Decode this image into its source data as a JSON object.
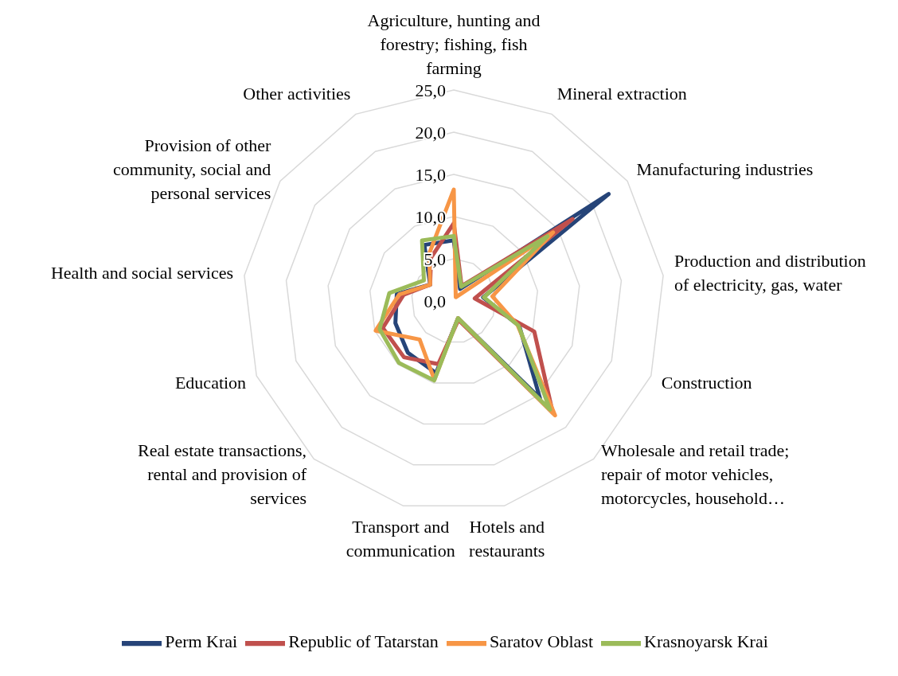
{
  "chart_data": {
    "type": "radar",
    "categories": [
      "Agriculture, hunting and forestry; fishing, fish farming",
      "Mineral extraction",
      "Manufacturing industries",
      "Production and distribution of electricity, gas, water",
      "Construction",
      "Wholesale and retail trade; repair of motor vehicles, motorcycles, household…",
      "Hotels and restaurants",
      "Transport and communication",
      "Real estate transactions, rental and provision of services",
      "Education",
      "Health and social services",
      "Provision of other community, social and personal services",
      "Other activities"
    ],
    "series": [
      {
        "name": "Perm Krai",
        "color": "#264478",
        "values": [
          7.2,
          1.6,
          22.3,
          3.5,
          8.3,
          15.4,
          2.1,
          8.8,
          8.2,
          7.4,
          6.8,
          3.4,
          7.5
        ]
      },
      {
        "name": "Republic of Tatarstan",
        "color": "#c0504d",
        "values": [
          9.2,
          2.0,
          17.1,
          2.5,
          10.2,
          17.7,
          2.3,
          7.7,
          8.9,
          9.0,
          6.0,
          3.4,
          5.8
        ]
      },
      {
        "name": "Saratov Oblast",
        "color": "#f79646",
        "values": [
          13.2,
          0.5,
          14.3,
          4.6,
          8.1,
          18.1,
          2.1,
          9.6,
          6.1,
          9.9,
          6.5,
          3.4,
          6.3
        ]
      },
      {
        "name": "Krasnoyarsk Krai",
        "color": "#9bbb59",
        "values": [
          7.7,
          1.9,
          13.5,
          3.6,
          8.2,
          17.2,
          2.1,
          9.7,
          9.8,
          9.4,
          7.7,
          4.3,
          8.1
        ]
      }
    ],
    "ylim": [
      0,
      25
    ],
    "yticks": [
      {
        "value": 0,
        "label": "0,0"
      },
      {
        "value": 5,
        "label": "5,0"
      },
      {
        "value": 10,
        "label": "10,0"
      },
      {
        "value": 15,
        "label": "15,0"
      },
      {
        "value": 20,
        "label": "20,0"
      },
      {
        "value": 25,
        "label": "25,0"
      }
    ],
    "grid": true,
    "legend": "bottom"
  }
}
